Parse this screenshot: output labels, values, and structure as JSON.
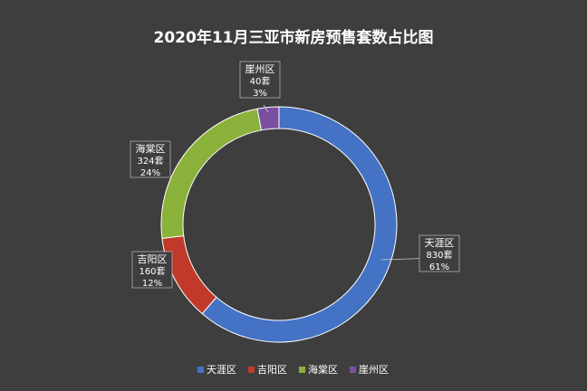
{
  "chart_data": {
    "type": "pie",
    "title": "2020年11月三亚市新房预售套数占比图",
    "slices": [
      {
        "name": "天涯区",
        "value": 830,
        "value_label": "830套",
        "percent_label": "61%",
        "color": "#4472C4"
      },
      {
        "name": "吉阳区",
        "value": 160,
        "value_label": "160套",
        "percent_label": "12%",
        "color": "#C0392B"
      },
      {
        "name": "海棠区",
        "value": 324,
        "value_label": "324套",
        "percent_label": "24%",
        "color": "#8AB13A"
      },
      {
        "name": "崖州区",
        "value": 40,
        "value_label": "40套",
        "percent_label": "3%",
        "color": "#7B4FA0"
      }
    ],
    "legend_position": "bottom",
    "donut": true
  },
  "colors": {
    "background": "#3e3e3e",
    "text": "#ffffff"
  }
}
